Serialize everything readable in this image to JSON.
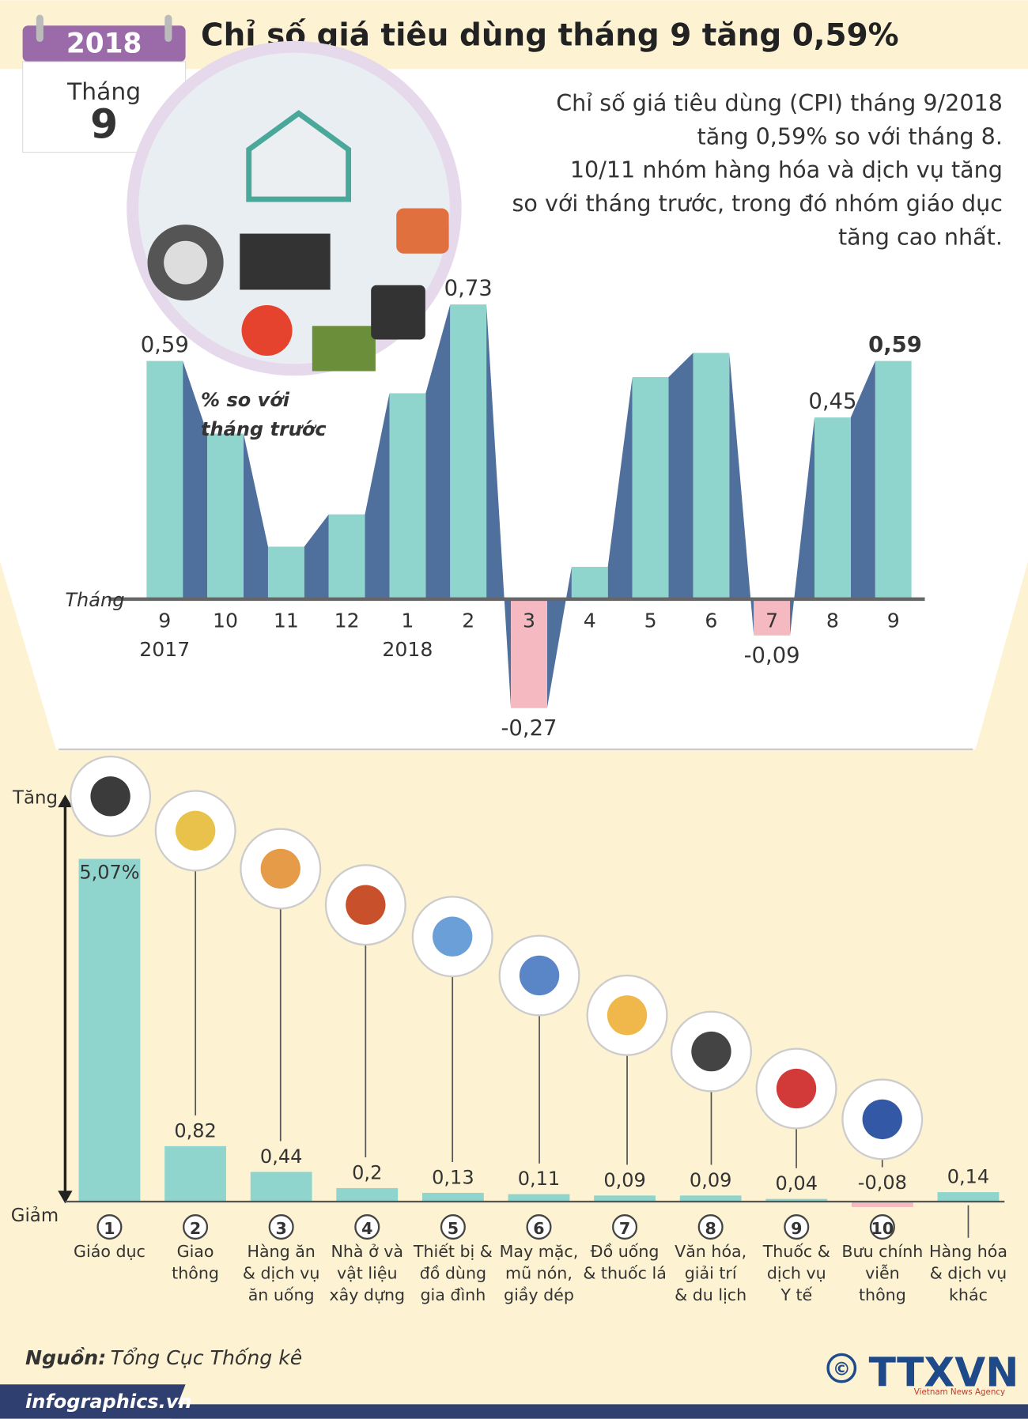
{
  "header": {
    "year": "2018",
    "month_label": "Tháng",
    "month": "9",
    "title": "Chỉ số giá tiêu dùng tháng 9 tăng 0,59%",
    "description": [
      "Chỉ số giá tiêu dùng (CPI) tháng 9/2018",
      "tăng 0,59% so với tháng 8.",
      "10/11 nhóm hàng hóa và dịch vụ tăng",
      "so với tháng trước, trong đó nhóm giáo dục",
      "tăng cao nhất."
    ]
  },
  "chart_data": [
    {
      "type": "bar3d",
      "y_label": "% so với\ntháng trước",
      "x_label": "Tháng",
      "categories": [
        "9",
        "10",
        "11",
        "12",
        "1",
        "2",
        "3",
        "4",
        "5",
        "6",
        "7",
        "8",
        "9"
      ],
      "year_labels": [
        "2017",
        null,
        null,
        null,
        "2018",
        null,
        null,
        null,
        null,
        null,
        null,
        null,
        null
      ],
      "values": [
        0.59,
        0.41,
        0.13,
        0.21,
        0.51,
        0.73,
        -0.27,
        0.08,
        0.55,
        0.61,
        -0.09,
        0.45,
        0.59
      ],
      "value_labels": [
        "0,59",
        null,
        null,
        null,
        null,
        "0,73",
        "-0,27",
        null,
        null,
        null,
        "-0,09",
        "0,45",
        "0,59"
      ],
      "color": "#8fd5cd",
      "side_color": "#4f6f9c",
      "negative_color": "#f5b9c1",
      "ylim": [
        -0.3,
        0.8
      ]
    },
    {
      "type": "bar",
      "y_label_top": "Tăng",
      "y_label_bottom": "Giảm",
      "group_numbers": [
        "1",
        "2",
        "3",
        "4",
        "5",
        "6",
        "7",
        "8",
        "9",
        "10",
        null
      ],
      "categories": [
        "Giáo dục",
        "Giao\nthông",
        "Hàng ăn\n& dịch vụ\năn uống",
        "Nhà ở và\nvật liệu\nxây dựng",
        "Thiết bị &\nđồ dùng\ngia đình",
        "May mặc,\nmũ nón,\ngiầy dép",
        "Đồ uống\n& thuốc lá",
        "Văn hóa,\ngiải trí\n& du lịch",
        "Thuốc &\ndịch vụ\nY tế",
        "Bưu chính\nviễn\nthông",
        "Hàng hóa\n& dịch vụ\nkhác"
      ],
      "values": [
        5.07,
        0.82,
        0.44,
        0.2,
        0.13,
        0.11,
        0.09,
        0.09,
        0.04,
        -0.08,
        0.14
      ],
      "value_labels": [
        "5,07%",
        "0,82",
        "0,44",
        "0,2",
        "0,13",
        "0,11",
        "0,09",
        "0,09",
        "0,04",
        "-0,08",
        "0,14"
      ],
      "color": "#8fd5cd",
      "negative_color": "#f5b9c1",
      "ylim": [
        -0.3,
        5.5
      ]
    }
  ],
  "footer": {
    "source_label": "Nguồn:",
    "source": "Tổng Cục Thống kê",
    "website": "infographics.vn",
    "copyright": "©",
    "agency": "TTXVN",
    "agency_sub": "Vietnam News Agency"
  }
}
